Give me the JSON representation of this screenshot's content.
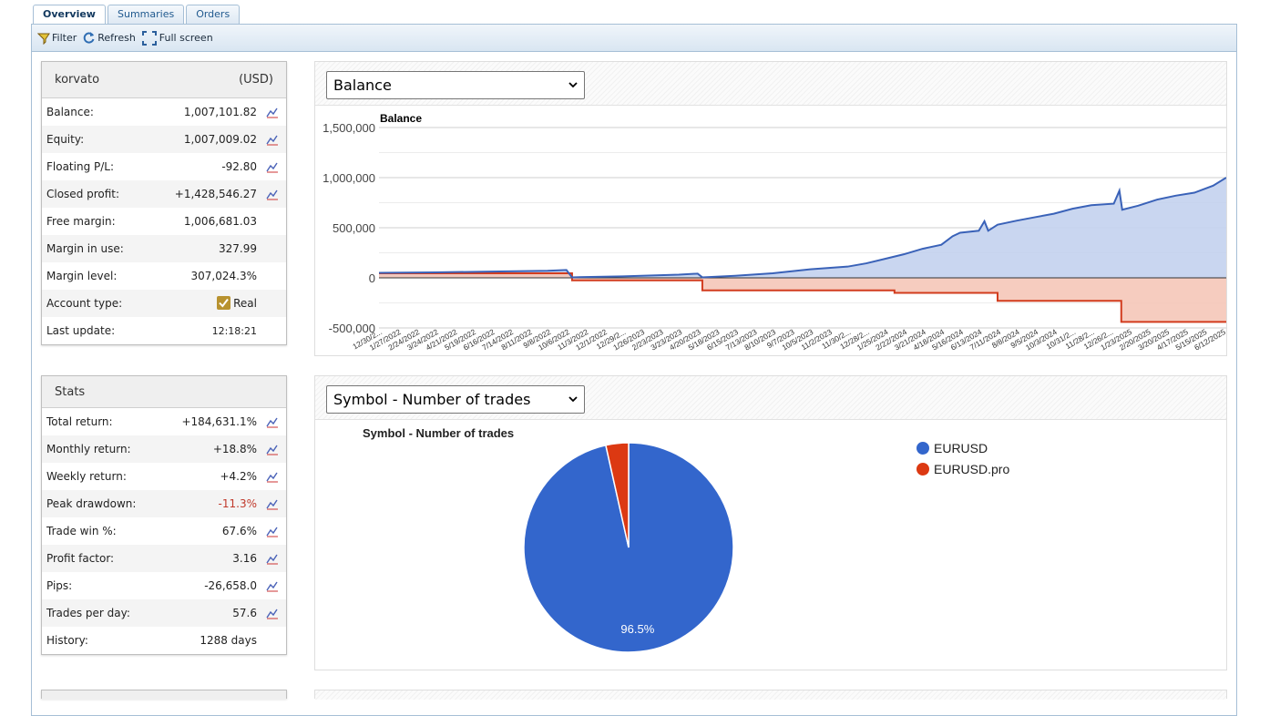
{
  "tabs": [
    {
      "label": "Overview"
    },
    {
      "label": "Summaries"
    },
    {
      "label": "Orders"
    }
  ],
  "toolbar": {
    "filter_label": "Filter",
    "refresh_label": "Refresh",
    "fullscreen_label": "Full screen"
  },
  "account": {
    "name": "korvato",
    "currency": "(USD)",
    "rows": [
      {
        "label": "Balance:",
        "value": "1,007,101.82"
      },
      {
        "label": "Equity:",
        "value": "1,007,009.02"
      },
      {
        "label": "Floating P/L:",
        "value": "-92.80"
      },
      {
        "label": "Closed profit:",
        "value": "+1,428,546.27"
      },
      {
        "label": "Free margin:",
        "value": "1,006,681.03"
      },
      {
        "label": "Margin in use:",
        "value": "327.99"
      },
      {
        "label": "Margin level:",
        "value": "307,024.3%"
      },
      {
        "label": "Account type:",
        "value": "Real"
      },
      {
        "label": "Last update:",
        "value": "12:18:21"
      }
    ]
  },
  "stats": {
    "title": "Stats",
    "rows": [
      {
        "label": "Total return:",
        "value": "+184,631.1%"
      },
      {
        "label": "Monthly return:",
        "value": "+18.8%"
      },
      {
        "label": "Weekly return:",
        "value": "+4.2%"
      },
      {
        "label": "Peak drawdown:",
        "value": "-11.3%"
      },
      {
        "label": "Trade win %:",
        "value": "67.6%"
      },
      {
        "label": "Profit factor:",
        "value": "3.16"
      },
      {
        "label": "Pips:",
        "value": "-26,658.0"
      },
      {
        "label": "Trades per day:",
        "value": "57.6"
      },
      {
        "label": "History:",
        "value": "1288 days"
      }
    ]
  },
  "balance_box": {
    "selected": "Balance"
  },
  "pie_box": {
    "selected": "Symbol - Number of trades"
  },
  "colors": {
    "balance_line": "#3a62b8",
    "balance_fill": "#c3d1ee",
    "drawdown_line": "#d23c1e",
    "drawdown_fill": "#f5c6b8",
    "pie_eurusd": "#3366cc",
    "pie_eurusd_pro": "#dc3912",
    "negative_text": "#c0392b"
  },
  "chart_data": [
    {
      "type": "area",
      "title": "Balance",
      "ylim": [
        -500000,
        1500000
      ],
      "yticks": [
        "1,500,000",
        "1,000,000",
        "500,000",
        "0",
        "-500,000"
      ],
      "grid": true,
      "xticklabels": [
        "12/30/2...",
        "1/27/2022",
        "2/24/2022",
        "3/24/2022",
        "4/21/2022",
        "5/19/2022",
        "6/16/2022",
        "7/14/2022",
        "8/11/2022",
        "9/8/2022",
        "10/6/2022",
        "11/3/2022",
        "12/1/2022",
        "12/29/2...",
        "1/26/2023",
        "2/23/2023",
        "3/23/2023",
        "4/20/2023",
        "5/18/2023",
        "6/15/2023",
        "7/13/2023",
        "8/10/2023",
        "9/7/2023",
        "10/5/2023",
        "11/2/2023",
        "11/30/2...",
        "12/28/2...",
        "1/25/2024",
        "2/22/2024",
        "3/21/2024",
        "4/18/2024",
        "5/16/2024",
        "6/13/2024",
        "7/11/2024",
        "8/8/2024",
        "9/5/2024",
        "10/3/2024",
        "10/31/2...",
        "11/28/2...",
        "12/26/2...",
        "1/23/2025",
        "2/20/2025",
        "3/20/2025",
        "4/17/2025",
        "5/15/2025",
        "6/12/2025"
      ],
      "series": [
        {
          "values": [
            [
              0,
              50000
            ],
            [
              3,
              55000
            ],
            [
              6,
              62000
            ],
            [
              9,
              70000
            ],
            [
              10,
              78000
            ],
            [
              10.3,
              5000
            ],
            [
              13,
              15000
            ],
            [
              16,
              32000
            ],
            [
              17,
              42000
            ],
            [
              17.25,
              5000
            ],
            [
              19,
              20000
            ],
            [
              21,
              45000
            ],
            [
              23,
              85000
            ],
            [
              25,
              112000
            ],
            [
              26,
              145000
            ],
            [
              27,
              190000
            ],
            [
              28,
              235000
            ],
            [
              29,
              290000
            ],
            [
              30,
              330000
            ],
            [
              30.6,
              415000
            ],
            [
              31,
              450000
            ],
            [
              32,
              470000
            ],
            [
              32.3,
              565000
            ],
            [
              32.5,
              470000
            ],
            [
              33,
              530000
            ],
            [
              34,
              570000
            ],
            [
              35,
              605000
            ],
            [
              36,
              640000
            ],
            [
              37,
              690000
            ],
            [
              38,
              725000
            ],
            [
              39.2,
              740000
            ],
            [
              39.5,
              870000
            ],
            [
              39.65,
              680000
            ],
            [
              40.5,
              720000
            ],
            [
              41.5,
              780000
            ],
            [
              42.5,
              820000
            ],
            [
              43.5,
              850000
            ],
            [
              44.5,
              920000
            ],
            [
              45.2,
              1000000
            ]
          ]
        },
        {
          "values": [
            [
              0,
              45000
            ],
            [
              10.3,
              45000
            ],
            [
              10.3,
              -25000
            ],
            [
              17.25,
              -25000
            ],
            [
              17.25,
              -125000
            ],
            [
              27.5,
              -125000
            ],
            [
              27.5,
              -150000
            ],
            [
              33,
              -150000
            ],
            [
              33,
              -230000
            ],
            [
              39.6,
              -230000
            ],
            [
              39.6,
              -440000
            ],
            [
              45.2,
              -440000
            ]
          ]
        }
      ]
    },
    {
      "type": "pie",
      "title": "Symbol - Number of trades",
      "labels": [
        "EURUSD",
        "EURUSD.pro"
      ],
      "values": [
        96.5,
        3.5
      ],
      "data_labels": [
        "96.5%",
        ""
      ],
      "legend": "right"
    }
  ]
}
